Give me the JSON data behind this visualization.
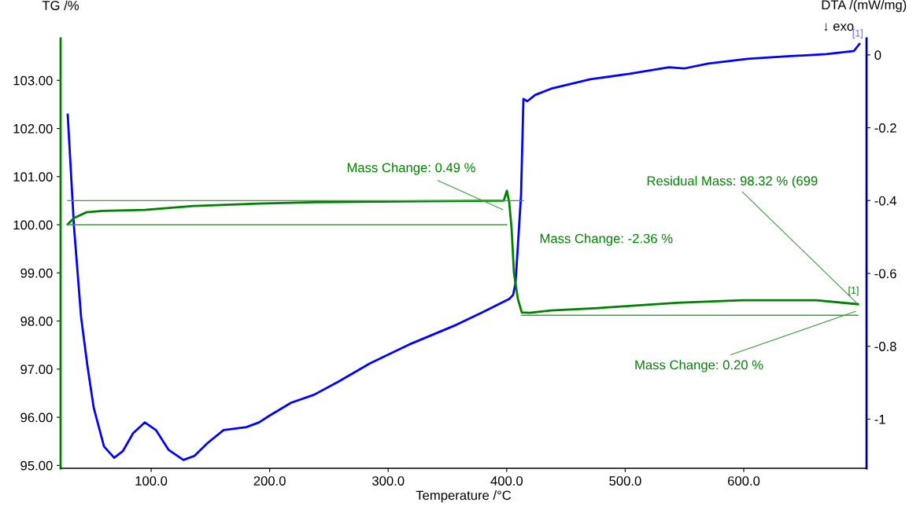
{
  "chart_data": {
    "type": "line",
    "xlabel": "Temperature /°C",
    "ylabel": "TG /%",
    "y2label": "DTA /(mW/mg)",
    "xlim": [
      23.6,
      703.6
    ],
    "ylim": [
      94.94,
      103.87
    ],
    "y2lim": [
      -1.135,
      0.045
    ],
    "xticks": [
      {
        "value": 100,
        "label": "100.0"
      },
      {
        "value": 200,
        "label": "200.0"
      },
      {
        "value": 300,
        "label": "300.0"
      },
      {
        "value": 400,
        "label": "400.0"
      },
      {
        "value": 500,
        "label": "500.0"
      },
      {
        "value": 600,
        "label": "600.0"
      }
    ],
    "yticks": [
      {
        "value": 95,
        "label": "95.00"
      },
      {
        "value": 96,
        "label": "96.00"
      },
      {
        "value": 97,
        "label": "97.00"
      },
      {
        "value": 98,
        "label": "98.00"
      },
      {
        "value": 99,
        "label": "99.00"
      },
      {
        "value": 100,
        "label": "100.00"
      },
      {
        "value": 101,
        "label": "101.00"
      },
      {
        "value": 102,
        "label": "102.00"
      },
      {
        "value": 103,
        "label": "103.00"
      }
    ],
    "y2ticks": [
      0,
      -0.2,
      -0.4,
      -0.6,
      -0.8,
      -1
    ],
    "grid": false,
    "legend": false,
    "series": [
      {
        "color": "#0000ff",
        "axis": "y2",
        "x": [
          29.6,
          34.9,
          40.9,
          46.2,
          51.5,
          60.2,
          68.8,
          76.1,
          84.7,
          94.7,
          104.0,
          114.6,
          127.2,
          136.5,
          147.1,
          161.1,
          180.3,
          191.0,
          199.6,
          218.2,
          237.5,
          258.0,
          284.6,
          317.8,
          357.6,
          379.5,
          402.1,
          405.4,
          407.4,
          409.4,
          412.1,
          414.1,
          417.4,
          424.0,
          437.3,
          470.5,
          503.7,
          536.9,
          550.2,
          570.1,
          603.3,
          636.5,
          669.7,
          693.0,
          697.6
        ],
        "values": [
          -0.164,
          -0.472,
          -0.72,
          -0.853,
          -0.968,
          -1.075,
          -1.106,
          -1.088,
          -1.039,
          -1.009,
          -1.03,
          -1.084,
          -1.112,
          -1.101,
          -1.067,
          -1.03,
          -1.022,
          -1.009,
          -0.991,
          -0.955,
          -0.933,
          -0.897,
          -0.847,
          -0.795,
          -0.741,
          -0.707,
          -0.67,
          -0.659,
          -0.627,
          -0.526,
          -0.384,
          -0.121,
          -0.127,
          -0.11,
          -0.093,
          -0.067,
          -0.052,
          -0.034,
          -0.037,
          -0.024,
          -0.011,
          -0.004,
          0.002,
          0.011,
          0.03
        ]
      },
      {
        "color": "#008000",
        "axis": "y",
        "x": [
          29.6,
          34.9,
          45.5,
          59.4,
          94.7,
          135.9,
          190.3,
          237.5,
          397.5,
          400.1,
          402.1,
          404.1,
          406.1,
          409.4,
          412.7,
          419.4,
          437.3,
          477.2,
          543.6,
          598.7,
          661.1,
          696.3
        ],
        "values": [
          100.01,
          100.14,
          100.26,
          100.29,
          100.31,
          100.39,
          100.44,
          100.47,
          100.5,
          100.71,
          100.47,
          99.93,
          99.0,
          98.46,
          98.18,
          98.17,
          98.22,
          98.27,
          98.38,
          98.43,
          98.43,
          98.35
        ]
      },
      {
        "color": "#3c9c3c",
        "axis": "y",
        "x": [
          29.6,
          400.1
        ],
        "values": [
          100.0,
          100.0
        ]
      },
      {
        "color": "#3c9c3c",
        "axis": "y",
        "x": [
          29.6,
          414.1
        ],
        "values": [
          100.5,
          100.5
        ]
      },
      {
        "color": "#3c9c3c",
        "axis": "y",
        "x": [
          412.7,
          696.3
        ],
        "values": [
          98.12,
          98.12
        ]
      }
    ],
    "annotations": [
      {
        "text": "Residual Mass: 98.32 % (699",
        "x": 696.3,
        "y": 98.35
      },
      {
        "text": "[1]",
        "x": 696.3,
        "y": 98.35
      },
      "Mass Change: 0.49 %",
      "Mass Change: -2.36 %",
      "Mass Change: 0.20 %",
      "[1]",
      "↓ exo"
    ]
  }
}
